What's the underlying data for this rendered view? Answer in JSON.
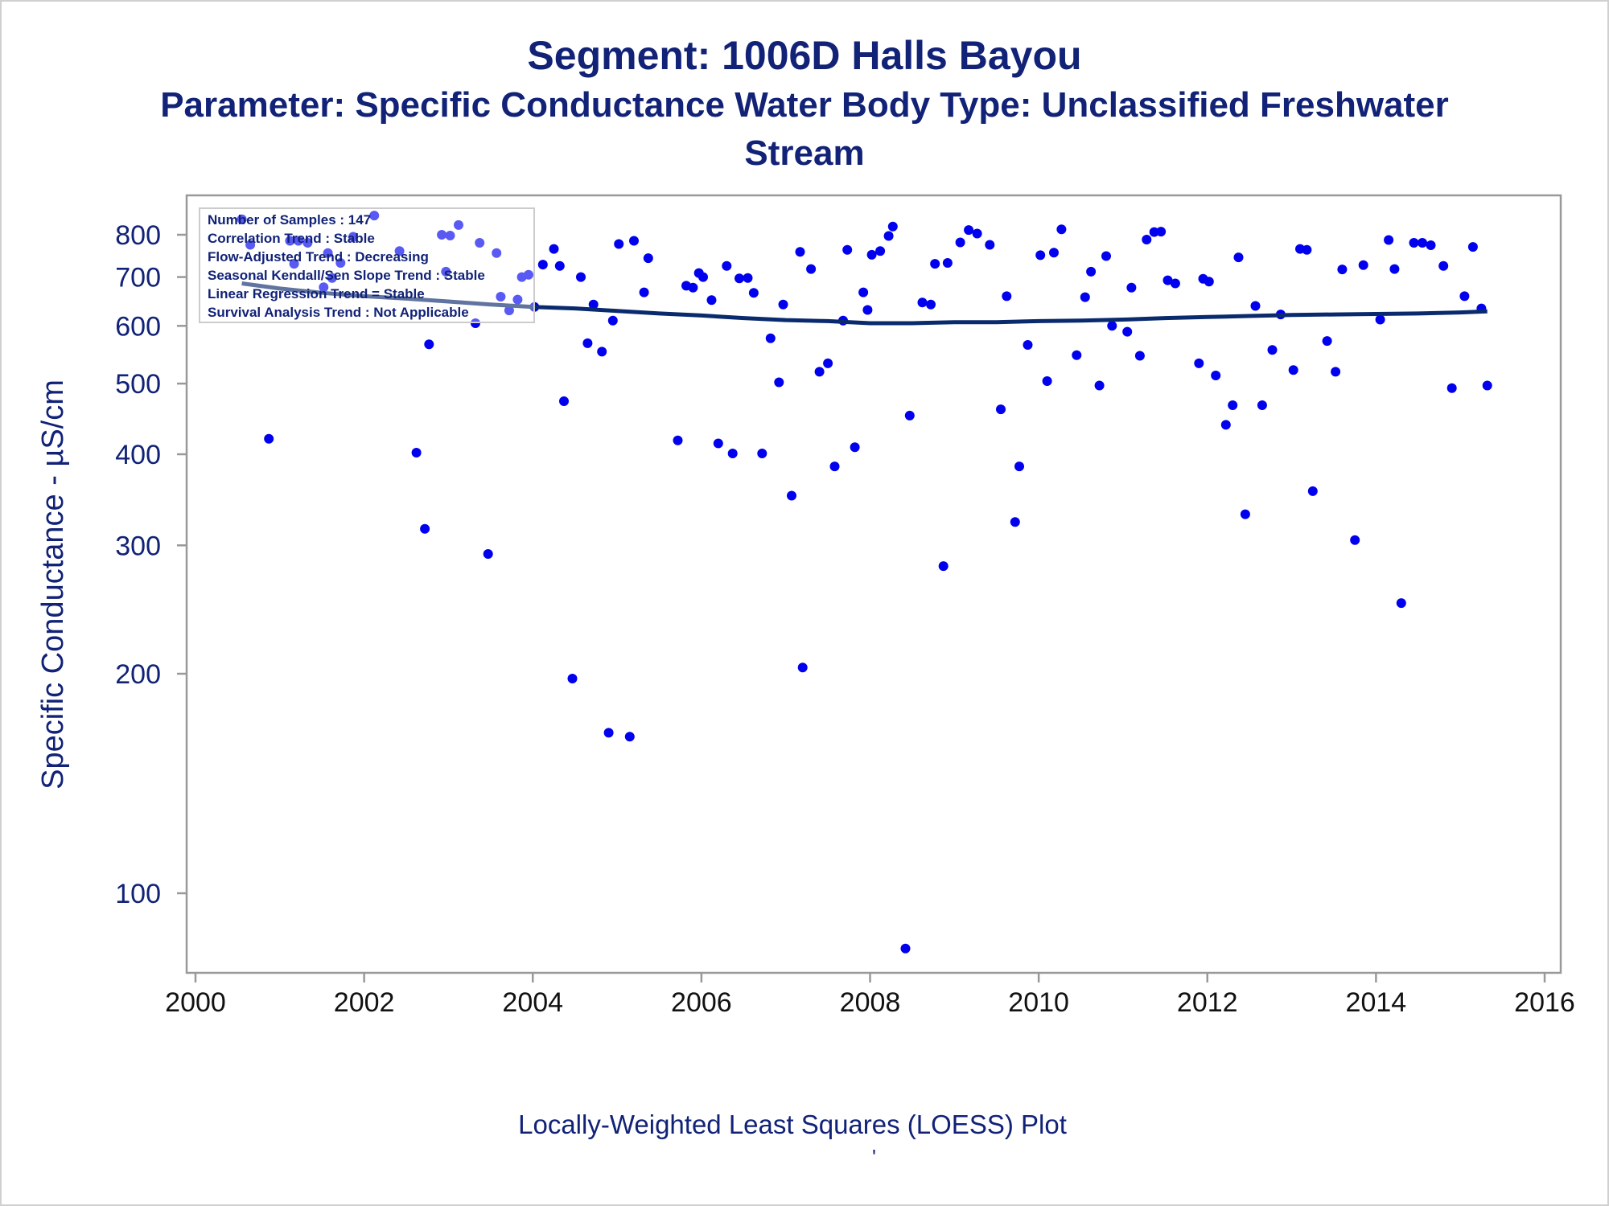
{
  "title": "Segment: 1006D  Halls Bayou",
  "subtitle_line1": "Parameter: Specific Conductance   Water Body Type: Unclassified Freshwater",
  "subtitle_line2": "Stream",
  "footer": "Locally-Weighted Least Squares (LOESS) Plot",
  "footer_mark": "'",
  "legend_box": [
    "Number of Samples : 147",
    "Correlation Trend : Stable",
    "Flow-Adjusted Trend : Decreasing",
    "Seasonal Kendall/Sen Slope Trend : Stable",
    "Linear Regression Trend = Stable",
    "Survival Analysis Trend : Not Applicable"
  ],
  "colors": {
    "text": "#112277",
    "points": "#0000ee",
    "loess": "#0a2a6e",
    "axis": "#999999"
  },
  "chart_data": {
    "type": "scatter",
    "ylabel": "Specific Conductance -  µS/cm",
    "xlabel": "",
    "yscale": "log",
    "xlim": [
      2000,
      2016
    ],
    "ylim": [
      84,
      880
    ],
    "x_ticks": [
      2000,
      2002,
      2004,
      2006,
      2008,
      2010,
      2012,
      2014,
      2016
    ],
    "y_ticks": [
      100,
      200,
      300,
      400,
      500,
      600,
      700,
      800
    ],
    "points": [
      [
        2000.55,
        840
      ],
      [
        2000.65,
        775
      ],
      [
        2000.87,
        420
      ],
      [
        2001.12,
        785
      ],
      [
        2001.17,
        730
      ],
      [
        2001.22,
        785
      ],
      [
        2001.33,
        780
      ],
      [
        2001.52,
        678
      ],
      [
        2001.57,
        755
      ],
      [
        2001.62,
        698
      ],
      [
        2001.72,
        732
      ],
      [
        2001.87,
        795
      ],
      [
        2002.12,
        850
      ],
      [
        2002.42,
        760
      ],
      [
        2002.62,
        402
      ],
      [
        2002.72,
        316
      ],
      [
        2002.77,
        566
      ],
      [
        2002.92,
        800
      ],
      [
        2002.97,
        712
      ],
      [
        2003.02,
        798
      ],
      [
        2003.12,
        825
      ],
      [
        2003.32,
        605
      ],
      [
        2003.37,
        780
      ],
      [
        2003.47,
        292
      ],
      [
        2003.57,
        755
      ],
      [
        2003.62,
        658
      ],
      [
        2003.72,
        630
      ],
      [
        2003.82,
        652
      ],
      [
        2003.87,
        700
      ],
      [
        2003.95,
        705
      ],
      [
        2004.02,
        637
      ],
      [
        2004.12,
        728
      ],
      [
        2004.25,
        765
      ],
      [
        2004.32,
        725
      ],
      [
        2004.37,
        473
      ],
      [
        2004.47,
        197
      ],
      [
        2004.57,
        700
      ],
      [
        2004.65,
        568
      ],
      [
        2004.72,
        642
      ],
      [
        2004.82,
        553
      ],
      [
        2004.9,
        166
      ],
      [
        2004.95,
        610
      ],
      [
        2005.02,
        777
      ],
      [
        2005.15,
        164
      ],
      [
        2005.2,
        785
      ],
      [
        2005.32,
        667
      ],
      [
        2005.37,
        743
      ],
      [
        2005.72,
        418
      ],
      [
        2005.82,
        681
      ],
      [
        2005.9,
        677
      ],
      [
        2005.97,
        709
      ],
      [
        2006.02,
        700
      ],
      [
        2006.12,
        651
      ],
      [
        2006.2,
        414
      ],
      [
        2006.3,
        725
      ],
      [
        2006.37,
        401
      ],
      [
        2006.45,
        697
      ],
      [
        2006.55,
        698
      ],
      [
        2006.62,
        666
      ],
      [
        2006.72,
        401
      ],
      [
        2006.82,
        577
      ],
      [
        2006.92,
        502
      ],
      [
        2006.97,
        642
      ],
      [
        2007.07,
        351
      ],
      [
        2007.17,
        758
      ],
      [
        2007.2,
        204
      ],
      [
        2007.3,
        718
      ],
      [
        2007.4,
        519
      ],
      [
        2007.5,
        533
      ],
      [
        2007.58,
        385
      ],
      [
        2007.68,
        610
      ],
      [
        2007.73,
        763
      ],
      [
        2007.82,
        409
      ],
      [
        2007.92,
        667
      ],
      [
        2007.97,
        631
      ],
      [
        2008.02,
        751
      ],
      [
        2008.12,
        760
      ],
      [
        2008.22,
        797
      ],
      [
        2008.27,
        821
      ],
      [
        2008.42,
        84
      ],
      [
        2008.47,
        452
      ],
      [
        2008.62,
        646
      ],
      [
        2008.72,
        642
      ],
      [
        2008.77,
        730
      ],
      [
        2008.87,
        281
      ],
      [
        2008.92,
        732
      ],
      [
        2009.07,
        781
      ],
      [
        2009.17,
        812
      ],
      [
        2009.27,
        803
      ],
      [
        2009.42,
        775
      ],
      [
        2009.55,
        461
      ],
      [
        2009.62,
        659
      ],
      [
        2009.72,
        323
      ],
      [
        2009.77,
        385
      ],
      [
        2009.87,
        565
      ],
      [
        2010.02,
        750
      ],
      [
        2010.1,
        504
      ],
      [
        2010.18,
        756
      ],
      [
        2010.27,
        814
      ],
      [
        2010.45,
        547
      ],
      [
        2010.55,
        657
      ],
      [
        2010.62,
        712
      ],
      [
        2010.72,
        497
      ],
      [
        2010.8,
        748
      ],
      [
        2010.87,
        600
      ],
      [
        2011.05,
        589
      ],
      [
        2011.1,
        677
      ],
      [
        2011.2,
        546
      ],
      [
        2011.28,
        788
      ],
      [
        2011.37,
        807
      ],
      [
        2011.45,
        808
      ],
      [
        2011.53,
        693
      ],
      [
        2011.62,
        686
      ],
      [
        2011.9,
        533
      ],
      [
        2011.95,
        696
      ],
      [
        2012.02,
        690
      ],
      [
        2012.1,
        513
      ],
      [
        2012.22,
        439
      ],
      [
        2012.3,
        467
      ],
      [
        2012.37,
        745
      ],
      [
        2012.45,
        331
      ],
      [
        2012.57,
        639
      ],
      [
        2012.65,
        467
      ],
      [
        2012.77,
        556
      ],
      [
        2012.87,
        622
      ],
      [
        2013.02,
        522
      ],
      [
        2013.1,
        765
      ],
      [
        2013.18,
        763
      ],
      [
        2013.25,
        356
      ],
      [
        2013.42,
        572
      ],
      [
        2013.52,
        519
      ],
      [
        2013.6,
        717
      ],
      [
        2013.75,
        305
      ],
      [
        2013.85,
        727
      ],
      [
        2014.05,
        612
      ],
      [
        2014.15,
        787
      ],
      [
        2014.22,
        718
      ],
      [
        2014.3,
        250
      ],
      [
        2014.45,
        780
      ],
      [
        2014.55,
        780
      ],
      [
        2014.65,
        774
      ],
      [
        2014.8,
        725
      ],
      [
        2014.9,
        493
      ],
      [
        2015.05,
        659
      ],
      [
        2015.15,
        770
      ],
      [
        2015.25,
        634
      ],
      [
        2015.32,
        497
      ]
    ],
    "loess": [
      [
        2000.55,
        686
      ],
      [
        2001.0,
        675
      ],
      [
        2001.5,
        666
      ],
      [
        2002.0,
        659
      ],
      [
        2002.5,
        654
      ],
      [
        2003.0,
        648
      ],
      [
        2003.5,
        642
      ],
      [
        2004.0,
        637
      ],
      [
        2004.5,
        634
      ],
      [
        2005.0,
        629
      ],
      [
        2005.5,
        624
      ],
      [
        2006.0,
        620
      ],
      [
        2006.5,
        615
      ],
      [
        2007.0,
        611
      ],
      [
        2007.5,
        609
      ],
      [
        2008.0,
        605
      ],
      [
        2008.5,
        605
      ],
      [
        2009.0,
        607
      ],
      [
        2009.5,
        607
      ],
      [
        2010.0,
        609
      ],
      [
        2010.5,
        610
      ],
      [
        2011.0,
        612
      ],
      [
        2011.5,
        615
      ],
      [
        2012.0,
        617
      ],
      [
        2012.5,
        619
      ],
      [
        2013.0,
        621
      ],
      [
        2013.5,
        622
      ],
      [
        2014.0,
        623
      ],
      [
        2014.5,
        624
      ],
      [
        2015.0,
        626
      ],
      [
        2015.32,
        628
      ]
    ]
  }
}
